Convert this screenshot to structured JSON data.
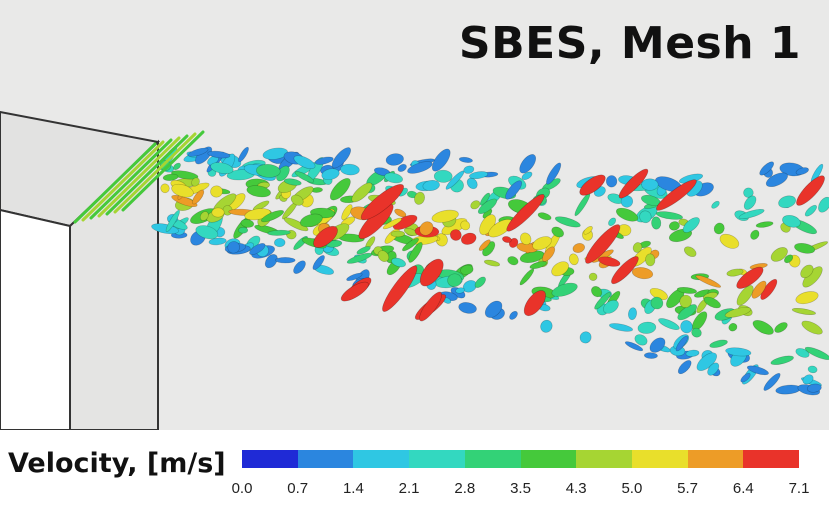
{
  "title": "SBES, Mesh 1",
  "legend": {
    "label": "Velocity, [m/s]",
    "ticks": [
      "0.0",
      "0.7",
      "1.4",
      "2.1",
      "2.8",
      "3.5",
      "4.3",
      "5.0",
      "5.7",
      "6.4",
      "7.1"
    ],
    "colors": [
      "#1f2ad6",
      "#2b86df",
      "#2fc7e3",
      "#33d8c0",
      "#33d277",
      "#45c93b",
      "#a6d533",
      "#e9df2b",
      "#ed9c27",
      "#e9332a"
    ]
  },
  "scene": {
    "background_color": "#e9e9e8",
    "structures": [
      "box-obstacle",
      "turbulent-vortex-structures"
    ]
  }
}
